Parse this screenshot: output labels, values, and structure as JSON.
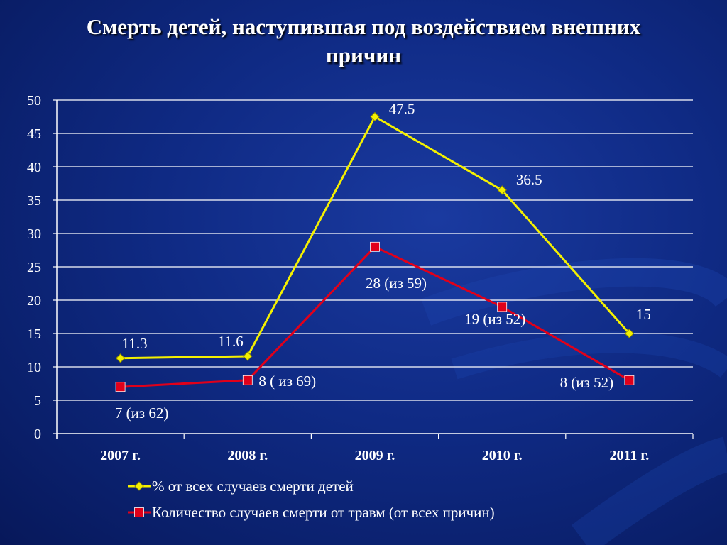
{
  "title": "Смерть детей, наступившая под воздействием внешних причин",
  "title_lines": [
    "Смерть детей, наступившая под воздействием внешних",
    "причин"
  ],
  "colors": {
    "background": "#0f2a84",
    "percent_line": "#f4f000",
    "percent_marker": "#f4f000",
    "count_line": "#e0001a",
    "count_marker": "#e0001a",
    "grid": "#ffffff",
    "text": "#ffffff"
  },
  "chart_data": {
    "type": "line",
    "categories": [
      "2007 г.",
      "2008 г.",
      "2009 г.",
      "2010 г.",
      "2011 г."
    ],
    "ylim": [
      0,
      50
    ],
    "yticks": [
      0,
      5,
      10,
      15,
      20,
      25,
      30,
      35,
      40,
      45,
      50
    ],
    "grid": true,
    "legend_position": "bottom",
    "xlabel": "",
    "ylabel": "",
    "series": [
      {
        "name": "% от всех случаев смерти детей",
        "values": [
          11.3,
          11.6,
          47.5,
          36.5,
          15
        ],
        "labels": [
          "11.3",
          "11.6",
          "47.5",
          "36.5",
          "15"
        ],
        "marker": "diamond"
      },
      {
        "name": "Количество случаев смерти от травм (от всех причин)",
        "values": [
          7,
          8,
          28,
          19,
          8
        ],
        "labels": [
          "7 (из 62)",
          "8 ( из 69)",
          "28 (из 59)",
          "19 (из 52)",
          "8 (из 52)"
        ],
        "marker": "square"
      }
    ]
  }
}
